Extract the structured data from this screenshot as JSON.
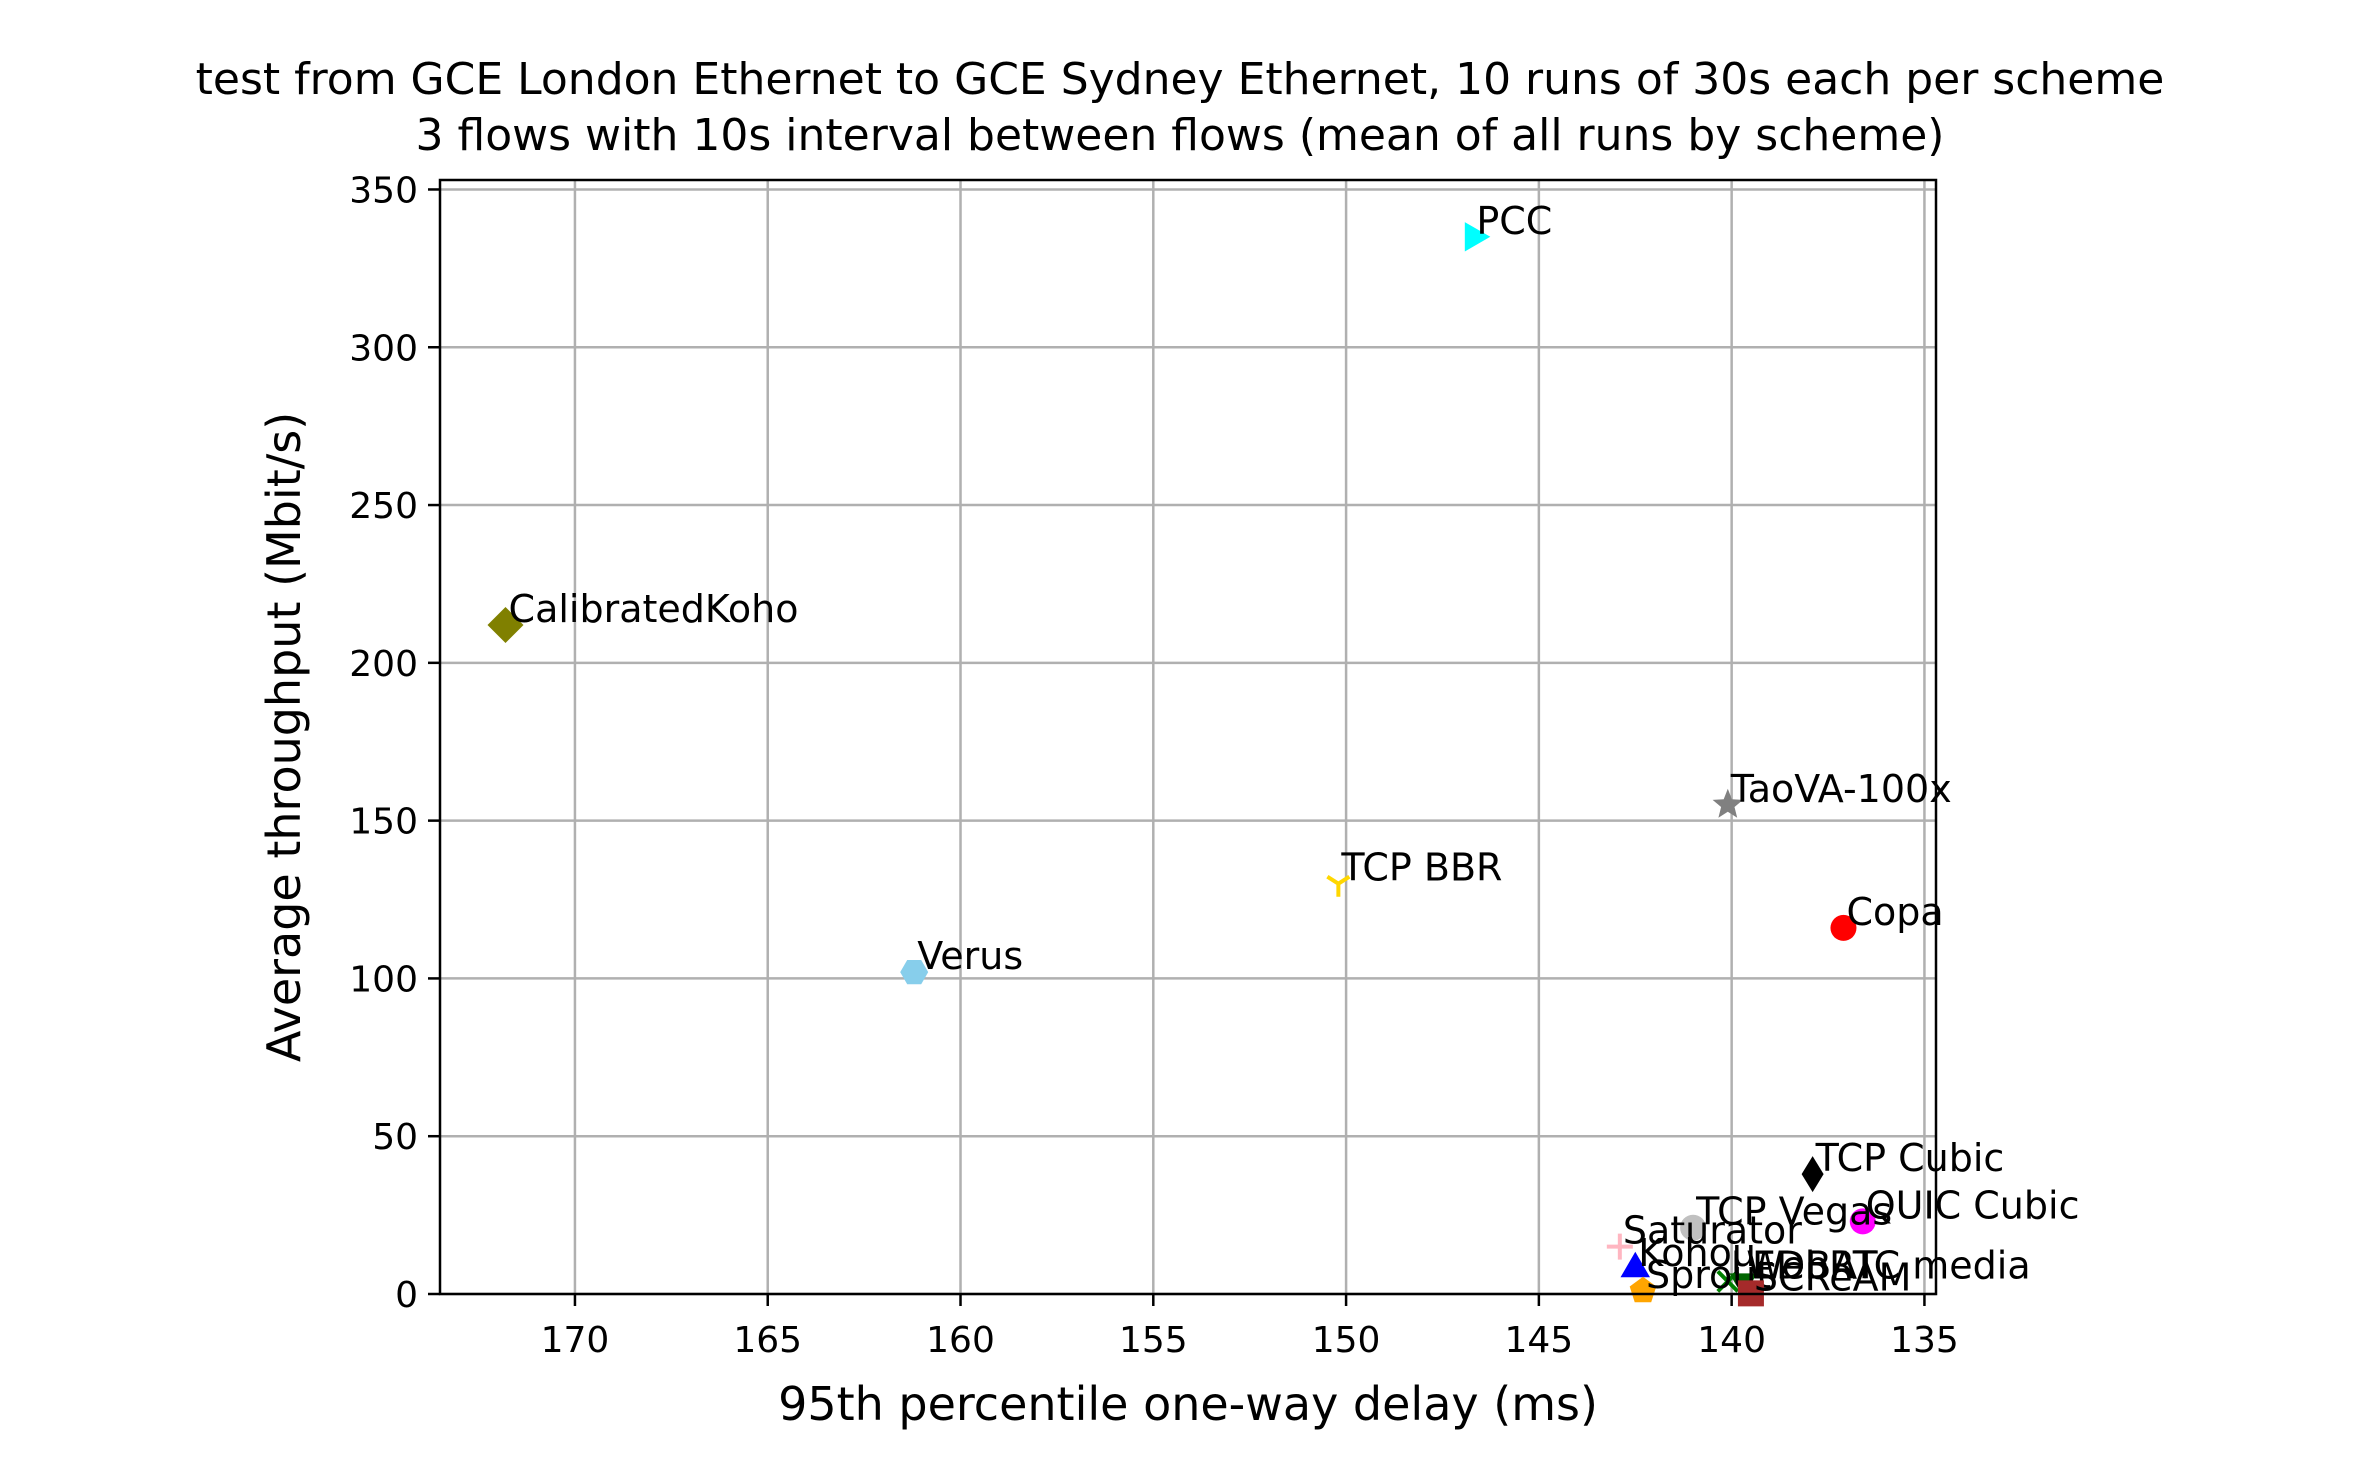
{
  "chart_data": {
    "type": "scatter",
    "title": [
      "test from GCE London Ethernet to GCE Sydney Ethernet, 10 runs of 30s each per scheme",
      "3 flows with 10s interval between flows (mean of all runs by scheme)"
    ],
    "xlabel": "95th percentile one-way delay (ms)",
    "ylabel": "Average throughput (Mbit/s)",
    "xlim": [
      173.5,
      134.7
    ],
    "ylim": [
      0,
      353
    ],
    "x_inverted": true,
    "grid": true,
    "xticks": [
      170,
      165,
      160,
      155,
      150,
      145,
      140,
      135
    ],
    "yticks": [
      0,
      50,
      100,
      150,
      200,
      250,
      300,
      350
    ],
    "points": [
      {
        "label": "PCC",
        "x": 146.7,
        "y": 335,
        "color": "#00ffff",
        "marker": "triangle-right"
      },
      {
        "label": "CalibratedKoho",
        "x": 171.8,
        "y": 212,
        "color": "#808000",
        "marker": "diamond"
      },
      {
        "label": "TaoVA-100x",
        "x": 140.1,
        "y": 155,
        "color": "#808080",
        "marker": "star"
      },
      {
        "label": "TCP BBR",
        "x": 150.2,
        "y": 130,
        "color": "#ffd700",
        "marker": "tri-down"
      },
      {
        "label": "Copa",
        "x": 137.1,
        "y": 116,
        "color": "#ff0000",
        "marker": "circle"
      },
      {
        "label": "Verus",
        "x": 161.2,
        "y": 102,
        "color": "#87ceeb",
        "marker": "hexagon"
      },
      {
        "label": "TCP Cubic",
        "x": 137.9,
        "y": 38,
        "color": "#000000",
        "marker": "thin-diamond"
      },
      {
        "label": "QUIC Cubic",
        "x": 136.6,
        "y": 23,
        "color": "#ff00ff",
        "marker": "circle"
      },
      {
        "label": "TCP Vegas",
        "x": 141.0,
        "y": 21,
        "color": "#c0c0c0",
        "marker": "circle"
      },
      {
        "label": "Saturator",
        "x": 142.9,
        "y": 15,
        "color": "#ffb6c1",
        "marker": "plus"
      },
      {
        "label": "Kohou",
        "x": 142.5,
        "y": 8,
        "color": "#0000ff",
        "marker": "triangle-up"
      },
      {
        "label": "LEDBAT",
        "x": 140.1,
        "y": 4,
        "color": "#008000",
        "marker": "x"
      },
      {
        "label": "WebRTC media",
        "x": 139.7,
        "y": 4,
        "color": "#006400",
        "marker": "triangle-down"
      },
      {
        "label": "Sprout",
        "x": 142.3,
        "y": 1,
        "color": "#ffa500",
        "marker": "pentagon"
      },
      {
        "label": "SCReAM",
        "x": 139.5,
        "y": 0.2,
        "color": "#a52a2a",
        "marker": "square"
      }
    ]
  }
}
